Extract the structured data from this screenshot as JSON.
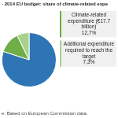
{
  "chart_data": {
    "type": "pie",
    "title": "- 2014 EU budget: share of climate-related expe",
    "categories": [
      null,
      "Climate-related expenditure (€17.7 billion)",
      "Additional expenditure required to reach the target"
    ],
    "values": [
      80,
      12.7,
      7.3
    ],
    "value_labels": [
      null,
      "12,7%",
      "7,3%"
    ],
    "colors": [
      "#2e75b6",
      "#70ad47",
      "#a9d18e"
    ],
    "annotations": [
      "e: Based on European Commission data."
    ],
    "data_labels": true
  }
}
